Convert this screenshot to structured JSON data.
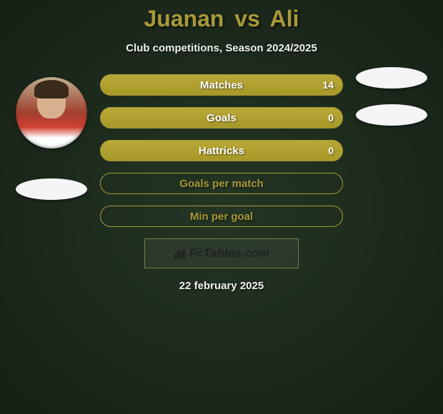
{
  "title": {
    "player1": "Juanan",
    "vs": "vs",
    "player2": "Ali",
    "color": "#a8983a"
  },
  "subtitle": "Club competitions, Season 2024/2025",
  "stats": [
    {
      "label": "Matches",
      "value": "14",
      "filled": true
    },
    {
      "label": "Goals",
      "value": "0",
      "filled": true
    },
    {
      "label": "Hattricks",
      "value": "0",
      "filled": true
    },
    {
      "label": "Goals per match",
      "value": "",
      "filled": false
    },
    {
      "label": "Min per goal",
      "value": "",
      "filled": false
    }
  ],
  "bar_style": {
    "fill_color": "#a89828",
    "border_color": "#a89838",
    "text_color": "#ffffff"
  },
  "logo": {
    "icon_name": "bar-chart-icon",
    "text": "FcTables.com"
  },
  "date": "22 february 2025",
  "colors": {
    "background": "#1a2a1a",
    "subtitle_text": "#f0f0f0",
    "badge_bg": "#f5f5f5"
  }
}
